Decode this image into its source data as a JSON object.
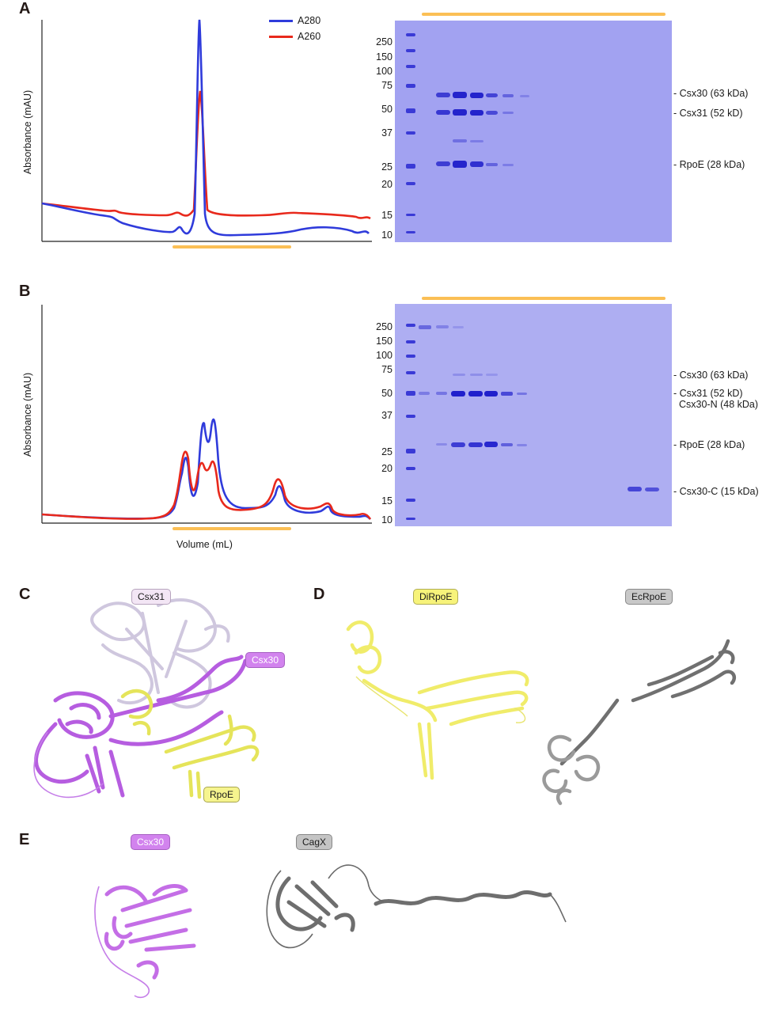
{
  "panels": {
    "A": {
      "letter": "A",
      "ylabel": "Absorbance (mAU)",
      "legend": [
        {
          "name": "A280",
          "color": "#2f3bdb"
        },
        {
          "name": "A260",
          "color": "#e8291c"
        }
      ],
      "gel_markers": [
        "250",
        "150",
        "100",
        "75",
        "50",
        "37",
        "25",
        "20",
        "15",
        "10"
      ],
      "band_labels": [
        "- Csx30 (63 kDa)",
        "- Csx31 (52 kD)",
        "- RpoE (28 kDa)"
      ]
    },
    "B": {
      "letter": "B",
      "ylabel": "Absorbance (mAU)",
      "xlabel": "Volume (mL)",
      "gel_markers": [
        "250",
        "150",
        "100",
        "75",
        "50",
        "37",
        "25",
        "20",
        "15",
        "10"
      ],
      "band_labels": [
        "- Csx30 (63 kDa)",
        "- Csx31 (52 kD)",
        "Csx30-N (48 kDa)",
        "- RpoE (28 kDa)",
        "- Csx30-C (15 kDa)"
      ]
    },
    "C": {
      "letter": "C",
      "chips": [
        {
          "label": "Csx31",
          "color": "#f3e6f5"
        },
        {
          "label": "Csx30",
          "color": "#d283ee"
        },
        {
          "label": "RpoE",
          "color": "#f6f48e"
        }
      ]
    },
    "D": {
      "letter": "D",
      "chips": [
        {
          "label": "DiRpoE",
          "color": "#f7f37a"
        },
        {
          "label": "EcRpoE",
          "color": "#c8c8c8"
        }
      ]
    },
    "E": {
      "letter": "E",
      "chips": [
        {
          "label": "Csx30",
          "color": "#d283ee"
        },
        {
          "label": "CagX",
          "color": "#c4c4c4"
        }
      ]
    }
  },
  "colors": {
    "a280": "#2f3bdb",
    "a260": "#e8291c",
    "orange": "#fbbf55",
    "gel_bg": "#9a9af0",
    "band": "#2a2ad8",
    "csx30": "#b65de0",
    "csx31": "#cfc8dc",
    "rpoe": "#e9e85a",
    "grey": "#6e6e6e"
  }
}
